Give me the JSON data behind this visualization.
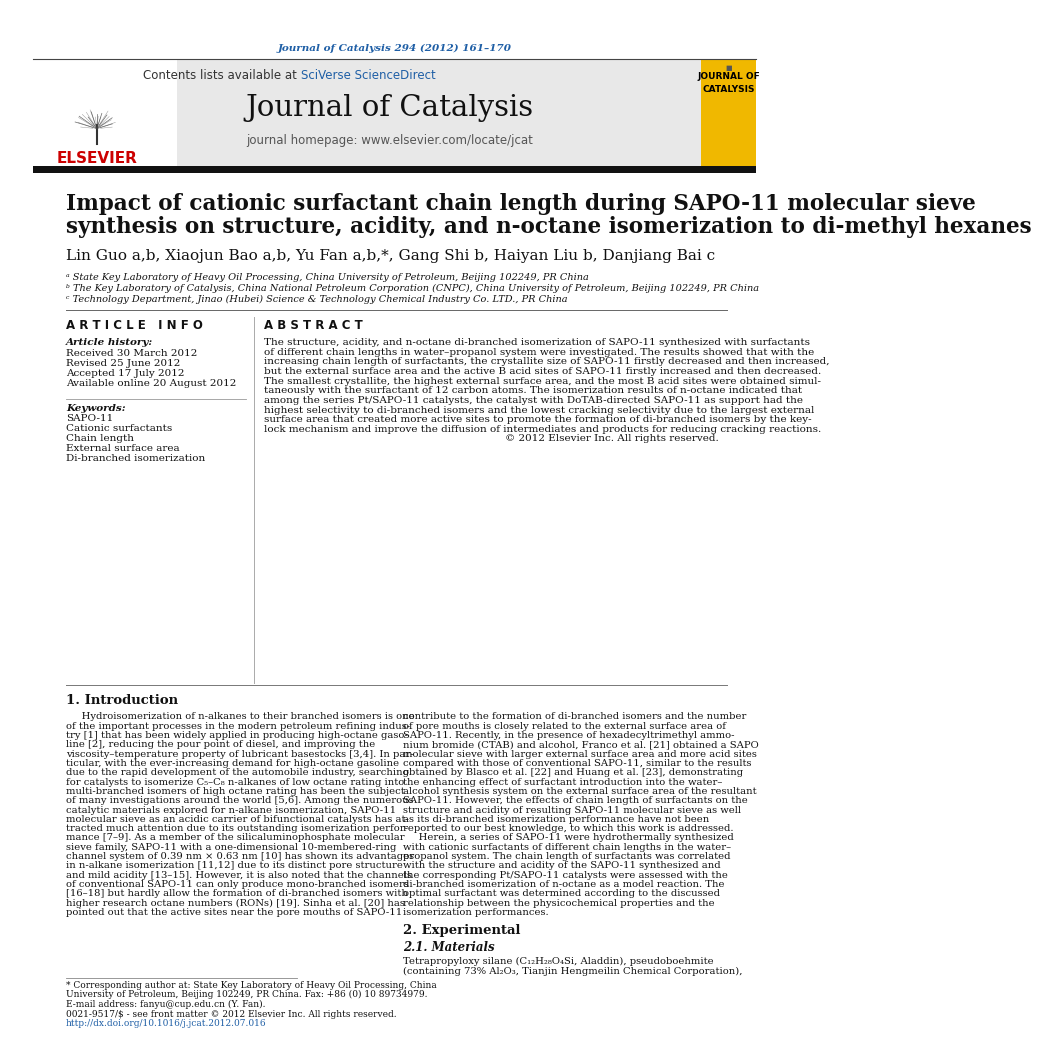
{
  "journal_ref": "Journal of Catalysis 294 (2012) 161–170",
  "journal_name": "Journal of Catalysis",
  "elsevier_text": "ELSEVIER",
  "title_line1": "Impact of cationic surfactant chain length during SAPO-11 molecular sieve",
  "title_line2": "synthesis on structure, acidity, and n-octane isomerization to di-methyl hexanes",
  "full_authors": "Lin Guo a,b, Xiaojun Bao a,b, Yu Fan a,b,*, Gang Shi b, Haiyan Liu b, Danjiang Bai c",
  "affil_a": "ᵃ State Key Laboratory of Heavy Oil Processing, China University of Petroleum, Beijing 102249, PR China",
  "affil_b": "ᵇ The Key Laboratory of Catalysis, China National Petroleum Corporation (CNPC), China University of Petroleum, Beijing 102249, PR China",
  "affil_c": "ᶜ Technology Department, Jinao (Hubei) Science & Technology Chemical Industry Co. LTD., PR China",
  "article_info_header": "A R T I C L E   I N F O",
  "abstract_header": "A B S T R A C T",
  "article_history_header": "Article history:",
  "received": "Received 30 March 2012",
  "revised": "Revised 25 June 2012",
  "accepted": "Accepted 17 July 2012",
  "available": "Available online 20 August 2012",
  "keywords_header": "Keywords:",
  "keywords": [
    "SAPO-11",
    "Cationic surfactants",
    "Chain length",
    "External surface area",
    "Di-branched isomerization"
  ],
  "abstract_lines": [
    "The structure, acidity, and n-octane di-branched isomerization of SAPO-11 synthesized with surfactants",
    "of different chain lengths in water–propanol system were investigated. The results showed that with the",
    "increasing chain length of surfactants, the crystallite size of SAPO-11 firstly decreased and then increased,",
    "but the external surface area and the active B acid sites of SAPO-11 firstly increased and then decreased.",
    "The smallest crystallite, the highest external surface area, and the most B acid sites were obtained simul-",
    "taneously with the surfactant of 12 carbon atoms. The isomerization results of n-octane indicated that",
    "among the series Pt/SAPO-11 catalysts, the catalyst with DoTAB-directed SAPO-11 as support had the",
    "highest selectivity to di-branched isomers and the lowest cracking selectivity due to the largest external",
    "surface area that created more active sites to promote the formation of di-branched isomers by the key-",
    "lock mechanism and improve the diffusion of intermediates and products for reducing cracking reactions.",
    "© 2012 Elsevier Inc. All rights reserved."
  ],
  "intro_header": "1. Introduction",
  "intro_col1_lines": [
    "     Hydroisomerization of n-alkanes to their branched isomers is one",
    "of the important processes in the modern petroleum refining indus-",
    "try [1] that has been widely applied in producing high-octane gaso-",
    "line [2], reducing the pour point of diesel, and improving the",
    "viscosity–temperature property of lubricant basestocks [3,4]. In par-",
    "ticular, with the ever-increasing demand for high-octane gasoline",
    "due to the rapid development of the automobile industry, searching",
    "for catalysts to isomerize C₅–C₈ n-alkanes of low octane rating into",
    "multi-branched isomers of high octane rating has been the subject",
    "of many investigations around the world [5,6]. Among the numerous",
    "catalytic materials explored for n-alkane isomerization, SAPO-11",
    "molecular sieve as an acidic carrier of bifunctional catalysts has at-",
    "tracted much attention due to its outstanding isomerization perfor-",
    "mance [7–9]. As a member of the silicaluminophosphate molecular",
    "sieve family, SAPO-11 with a one-dimensional 10-membered-ring",
    "channel system of 0.39 nm × 0.63 nm [10] has shown its advantages",
    "in n-alkane isomerization [11,12] due to its distinct pore structure",
    "and mild acidity [13–15]. However, it is also noted that the channels",
    "of conventional SAPO-11 can only produce mono-branched isomers",
    "[16–18] but hardly allow the formation of di-branched isomers with",
    "higher research octane numbers (RONs) [19]. Sinha et al. [20] has",
    "pointed out that the active sites near the pore mouths of SAPO-11"
  ],
  "intro_col2_lines": [
    "contribute to the formation of di-branched isomers and the number",
    "of pore mouths is closely related to the external surface area of",
    "SAPO-11. Recently, in the presence of hexadecyltrimethyl ammo-",
    "nium bromide (CTAB) and alcohol, Franco et al. [21] obtained a SAPO",
    "molecular sieve with larger external surface area and more acid sites",
    "compared with those of conventional SAPO-11, similar to the results",
    "obtained by Blasco et al. [22] and Huang et al. [23], demonstrating",
    "the enhancing effect of surfactant introduction into the water–",
    "alcohol synthesis system on the external surface area of the resultant",
    "SAPO-11. However, the effects of chain length of surfactants on the",
    "structure and acidity of resulting SAPO-11 molecular sieve as well",
    "as its di-branched isomerization performance have not been",
    "reported to our best knowledge, to which this work is addressed.",
    "     Herein, a series of SAPO-11 were hydrothermally synthesized",
    "with cationic surfactants of different chain lengths in the water–",
    "propanol system. The chain length of surfactants was correlated",
    "with the structure and acidity of the SAPO-11 synthesized and",
    "the corresponding Pt/SAPO-11 catalysts were assessed with the",
    "di-branched isomerization of n-octane as a model reaction. The",
    "optimal surfactant was determined according to the discussed",
    "relationship between the physicochemical properties and the",
    "isomerization performances."
  ],
  "section2_header": "2. Experimental",
  "section21_header": "2.1. Materials",
  "section21_lines": [
    "Tetrapropyloxy silane (C₁₂H₂₈O₄Si, Aladdin), pseudoboehmite",
    "(containing 73% Al₂O₃, Tianjin Hengmeilin Chemical Corporation),"
  ],
  "footnote_line1": "* Corresponding author at: State Key Laboratory of Heavy Oil Processing, China",
  "footnote_line2": "University of Petroleum, Beijing 102249, PR China. Fax: +86 (0) 10 89734979.",
  "footnote_email": "E-mail address: fanyu@cup.edu.cn (Y. Fan).",
  "footer_text1": "0021-9517/$ - see front matter © 2012 Elsevier Inc. All rights reserved.",
  "footer_text2": "http://dx.doi.org/10.1016/j.jcat.2012.07.016",
  "bg_color": "#ffffff",
  "header_bg": "#e8e8e8",
  "yellow_bg": "#f0b800",
  "blue_link": "#1f5fa6",
  "elsevier_red": "#cc0000"
}
